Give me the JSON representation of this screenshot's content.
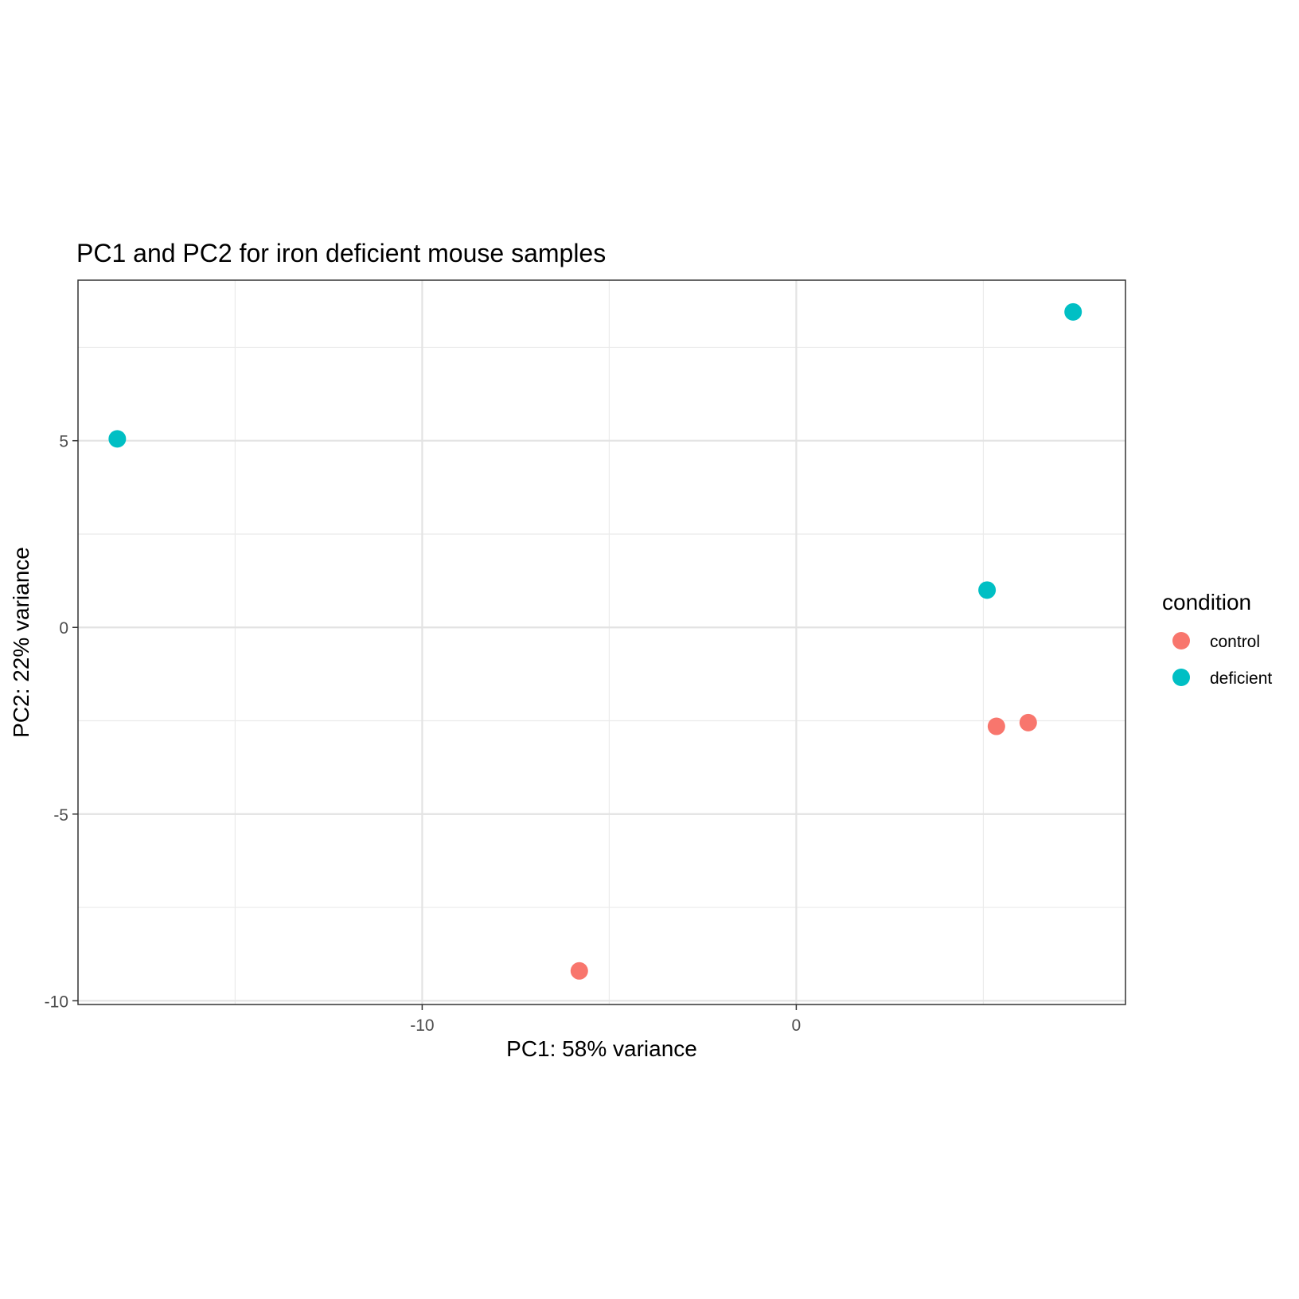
{
  "chart_data": {
    "type": "scatter",
    "title": "PC1 and PC2 for iron deficient mouse samples",
    "xlabel": "PC1: 58% variance",
    "ylabel": "PC2: 22% variance",
    "xlim": [
      -19.2,
      8.8
    ],
    "ylim": [
      -10.1,
      9.3
    ],
    "x_ticks": [
      -10,
      0
    ],
    "x_tick_labels": [
      "-10",
      "0"
    ],
    "y_ticks": [
      -10,
      -5,
      0,
      5
    ],
    "y_tick_labels": [
      "-10",
      "-5",
      "0",
      "5"
    ],
    "grid": true,
    "legend": {
      "title": "condition",
      "position": "right",
      "entries": [
        "control",
        "deficient"
      ]
    },
    "series": [
      {
        "name": "control",
        "color": "#F8766D",
        "points": [
          {
            "x": -5.8,
            "y": -9.2
          },
          {
            "x": 5.35,
            "y": -2.65
          },
          {
            "x": 6.2,
            "y": -2.55
          }
        ]
      },
      {
        "name": "deficient",
        "color": "#00BFC4",
        "points": [
          {
            "x": -18.15,
            "y": 5.05
          },
          {
            "x": 5.1,
            "y": 1.0
          },
          {
            "x": 7.4,
            "y": 8.45
          }
        ]
      }
    ]
  }
}
